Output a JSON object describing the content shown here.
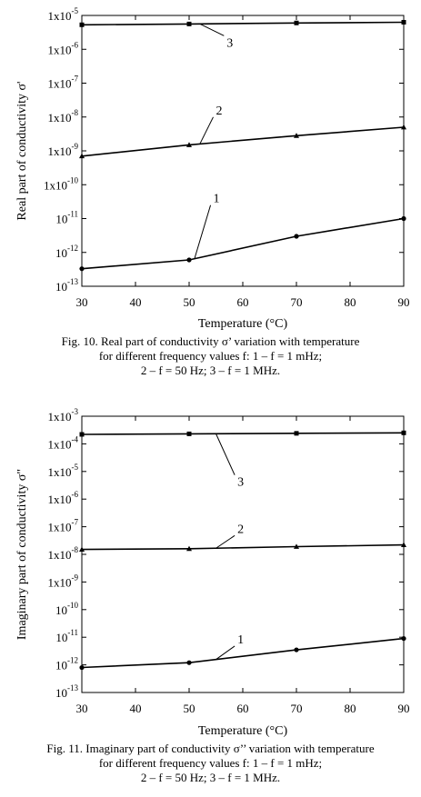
{
  "figures": [
    {
      "caption": [
        "Fig. 10.  Real part of conductivity σ’ variation with temperature",
        "for different frequency values f: 1 – f = 1 mHz;",
        "2 – f = 50 Hz; 3 – f = 1 MHz."
      ]
    },
    {
      "caption": [
        "Fig. 11.  Imaginary part of conductivity σ’’ variation with temperature",
        "for different frequency values f: 1 – f = 1 mHz;",
        "2 – f = 50 Hz; 3 – f = 1 MHz."
      ]
    }
  ],
  "chart_data": [
    {
      "type": "line",
      "xlabel": "Temperature (°C)",
      "ylabel": "Real part of conductivity σ'",
      "x_ticks": [
        "30",
        "40",
        "50",
        "60",
        "70",
        "80",
        "90"
      ],
      "xlim": [
        30,
        90
      ],
      "y_scale": "log",
      "ylim": [
        1e-13,
        1e-05
      ],
      "y_ticks": [
        {
          "value": 1e-05,
          "base": "1x10",
          "exp": "-5"
        },
        {
          "value": 1e-06,
          "base": "1x10",
          "exp": "-6"
        },
        {
          "value": 1e-07,
          "base": "1x10",
          "exp": "-7"
        },
        {
          "value": 1e-08,
          "base": "1x10",
          "exp": "-8"
        },
        {
          "value": 1e-09,
          "base": "1x10",
          "exp": "-9"
        },
        {
          "value": 1e-10,
          "base": "1x10",
          "exp": "-10"
        },
        {
          "value": 1e-11,
          "base": "10",
          "exp": "-11"
        },
        {
          "value": 1e-12,
          "base": "10",
          "exp": "-12"
        },
        {
          "value": 1e-13,
          "base": "10",
          "exp": "-13"
        }
      ],
      "series": [
        {
          "label": "1",
          "marker": "circle",
          "x": [
            30,
            50,
            70,
            90
          ],
          "y": [
            3.3e-13,
            6e-13,
            3e-12,
            1e-11
          ]
        },
        {
          "label": "2",
          "marker": "triangle",
          "x": [
            30,
            50,
            70,
            90
          ],
          "y": [
            7e-10,
            1.5e-09,
            2.8e-09,
            5e-09
          ]
        },
        {
          "label": "3",
          "marker": "square",
          "x": [
            30,
            50,
            70,
            90
          ],
          "y": [
            5.3e-06,
            5.6e-06,
            6e-06,
            6.3e-06
          ]
        }
      ],
      "annotations": [
        {
          "text": "3",
          "series_index": 2,
          "at_x": 52,
          "label_x": 57,
          "label_y": 1.2e-06
        },
        {
          "text": "2",
          "series_index": 1,
          "at_x": 52,
          "label_x": 55,
          "label_y": 1.2e-08
        },
        {
          "text": "1",
          "series_index": 0,
          "at_x": 51,
          "label_x": 54.5,
          "label_y": 3e-11
        }
      ]
    },
    {
      "type": "line",
      "xlabel": "Temperature (°C)",
      "ylabel": "Imaginary part of conductivity σ\"",
      "x_ticks": [
        "30",
        "40",
        "50",
        "60",
        "70",
        "80",
        "90"
      ],
      "xlim": [
        30,
        90
      ],
      "y_scale": "log",
      "ylim": [
        1e-13,
        0.001
      ],
      "y_ticks": [
        {
          "value": 0.001,
          "base": "1x10",
          "exp": "-3"
        },
        {
          "value": 0.0001,
          "base": "1x10",
          "exp": "-4"
        },
        {
          "value": 1e-05,
          "base": "1x10",
          "exp": "-5"
        },
        {
          "value": 1e-06,
          "base": "1x10",
          "exp": "-6"
        },
        {
          "value": 1e-07,
          "base": "1x10",
          "exp": "-7"
        },
        {
          "value": 1e-08,
          "base": "1x10",
          "exp": "-8"
        },
        {
          "value": 1e-09,
          "base": "1x10",
          "exp": "-9"
        },
        {
          "value": 1e-10,
          "base": "10",
          "exp": "-10"
        },
        {
          "value": 1e-11,
          "base": "10",
          "exp": "-11"
        },
        {
          "value": 1e-12,
          "base": "10",
          "exp": "-12"
        },
        {
          "value": 1e-13,
          "base": "10",
          "exp": "-13"
        }
      ],
      "series": [
        {
          "label": "1",
          "marker": "circle",
          "x": [
            30,
            50,
            70,
            90
          ],
          "y": [
            8e-13,
            1.2e-12,
            3.5e-12,
            9e-12
          ]
        },
        {
          "label": "2",
          "marker": "triangle",
          "x": [
            30,
            50,
            70,
            90
          ],
          "y": [
            1.5e-08,
            1.6e-08,
            1.9e-08,
            2.2e-08
          ]
        },
        {
          "label": "3",
          "marker": "square",
          "x": [
            30,
            50,
            70,
            90
          ],
          "y": [
            0.00022,
            0.00023,
            0.00024,
            0.00025
          ]
        }
      ],
      "annotations": [
        {
          "text": "3",
          "series_index": 2,
          "at_x": 55,
          "label_x": 59,
          "label_y": 3e-06
        },
        {
          "text": "2",
          "series_index": 1,
          "at_x": 55,
          "label_x": 59,
          "label_y": 6e-08
        },
        {
          "text": "1",
          "series_index": 0,
          "at_x": 55,
          "label_x": 59,
          "label_y": 6e-12
        }
      ]
    }
  ]
}
